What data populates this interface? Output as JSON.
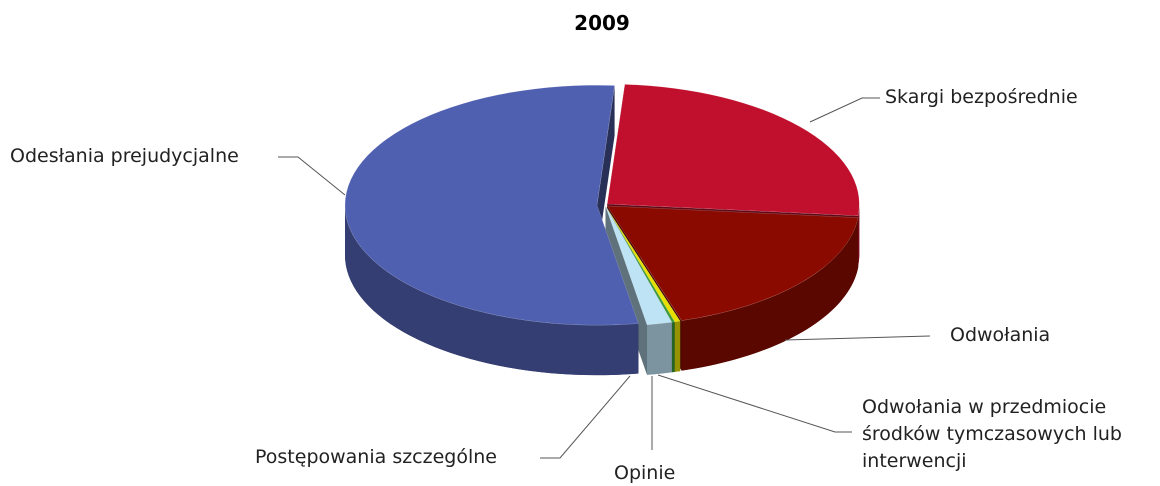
{
  "chart_data": {
    "type": "pie3d",
    "title": "2009",
    "categories": [
      "Skargi bezpośrednie",
      "Odwołania",
      "Odwołania w przedmiocie środków tymczasowych lub interwencji",
      "Opinie",
      "Postępowania szczególne",
      "Odesłania prejudycjalne"
    ],
    "values": [
      143,
      105,
      2,
      1,
      9,
      302
    ],
    "colors": [
      "#c0102e",
      "#8a0a00",
      "#e8e000",
      "#3a9a3a",
      "#bde3f5",
      "#5060b0"
    ]
  }
}
